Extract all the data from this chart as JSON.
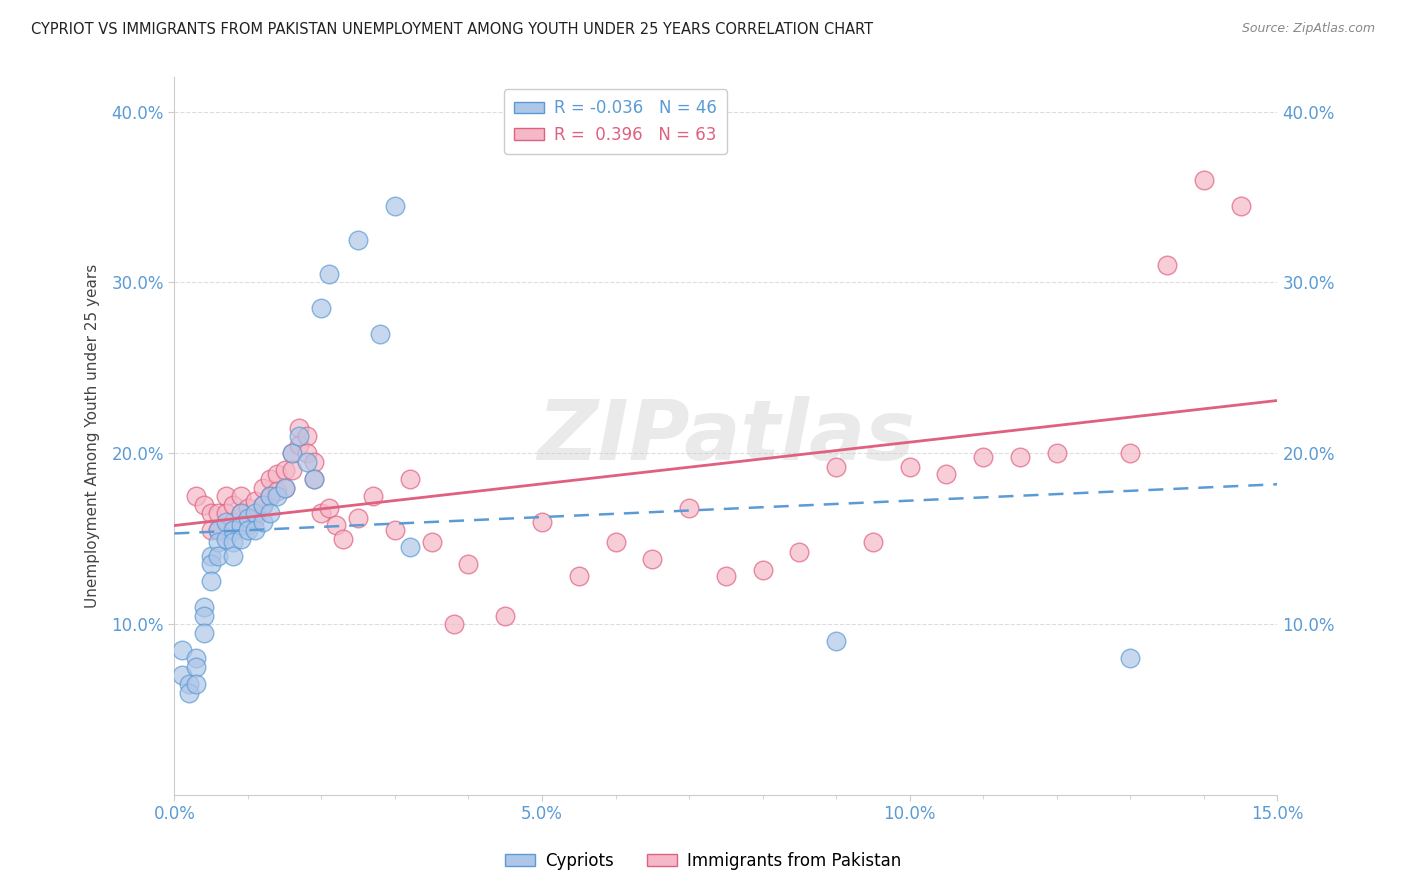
{
  "title": "CYPRIOT VS IMMIGRANTS FROM PAKISTAN UNEMPLOYMENT AMONG YOUTH UNDER 25 YEARS CORRELATION CHART",
  "source": "Source: ZipAtlas.com",
  "ylabel": "Unemployment Among Youth under 25 years",
  "xlim": [
    0.0,
    0.15
  ],
  "ylim": [
    0.0,
    0.42
  ],
  "xtick_labels": [
    "0.0%",
    "",
    "",
    "",
    "",
    "5.0%",
    "",
    "",
    "",
    "",
    "10.0%",
    "",
    "",
    "",
    "",
    "15.0%"
  ],
  "xtick_vals": [
    0.0,
    0.01,
    0.02,
    0.03,
    0.04,
    0.05,
    0.06,
    0.07,
    0.08,
    0.09,
    0.1,
    0.11,
    0.12,
    0.13,
    0.14,
    0.15
  ],
  "ytick_vals": [
    0.1,
    0.2,
    0.3,
    0.4
  ],
  "ytick_labels": [
    "10.0%",
    "20.0%",
    "30.0%",
    "40.0%"
  ],
  "cypriot_color": "#aec6e8",
  "cypriot_edge_color": "#5b9bd5",
  "pakistan_color": "#f4b8c8",
  "pakistan_edge_color": "#e06080",
  "cypriot_line_color": "#5b9bd5",
  "pakistan_line_color": "#e06080",
  "legend_label_cypriot": "R = -0.036   N = 46",
  "legend_label_pakistan": "R =  0.396   N = 63",
  "watermark": "ZIPatlas",
  "grid_color": "#dddddd",
  "tick_color": "#5b9bd5",
  "cypriot_x": [
    0.001,
    0.001,
    0.002,
    0.002,
    0.003,
    0.003,
    0.003,
    0.004,
    0.004,
    0.004,
    0.005,
    0.005,
    0.005,
    0.006,
    0.006,
    0.006,
    0.007,
    0.007,
    0.008,
    0.008,
    0.008,
    0.009,
    0.009,
    0.009,
    0.01,
    0.01,
    0.011,
    0.011,
    0.012,
    0.012,
    0.013,
    0.013,
    0.014,
    0.015,
    0.016,
    0.017,
    0.018,
    0.019,
    0.02,
    0.021,
    0.025,
    0.028,
    0.03,
    0.032,
    0.09,
    0.13
  ],
  "cypriot_y": [
    0.085,
    0.07,
    0.065,
    0.06,
    0.08,
    0.075,
    0.065,
    0.11,
    0.105,
    0.095,
    0.14,
    0.135,
    0.125,
    0.155,
    0.148,
    0.14,
    0.16,
    0.15,
    0.155,
    0.148,
    0.14,
    0.165,
    0.158,
    0.15,
    0.162,
    0.155,
    0.165,
    0.155,
    0.17,
    0.16,
    0.175,
    0.165,
    0.175,
    0.18,
    0.2,
    0.21,
    0.195,
    0.185,
    0.285,
    0.305,
    0.325,
    0.27,
    0.345,
    0.145,
    0.09,
    0.08
  ],
  "pakistan_x": [
    0.003,
    0.004,
    0.005,
    0.005,
    0.006,
    0.006,
    0.007,
    0.007,
    0.008,
    0.008,
    0.009,
    0.009,
    0.01,
    0.01,
    0.011,
    0.011,
    0.012,
    0.012,
    0.013,
    0.013,
    0.014,
    0.014,
    0.015,
    0.015,
    0.016,
    0.016,
    0.017,
    0.017,
    0.018,
    0.018,
    0.019,
    0.019,
    0.02,
    0.021,
    0.022,
    0.023,
    0.025,
    0.027,
    0.03,
    0.032,
    0.035,
    0.038,
    0.04,
    0.045,
    0.05,
    0.055,
    0.06,
    0.065,
    0.07,
    0.075,
    0.08,
    0.085,
    0.09,
    0.095,
    0.1,
    0.105,
    0.11,
    0.115,
    0.12,
    0.13,
    0.135,
    0.14,
    0.145
  ],
  "pakistan_y": [
    0.175,
    0.17,
    0.165,
    0.155,
    0.165,
    0.155,
    0.175,
    0.165,
    0.17,
    0.16,
    0.175,
    0.165,
    0.168,
    0.158,
    0.172,
    0.162,
    0.18,
    0.17,
    0.185,
    0.175,
    0.188,
    0.178,
    0.19,
    0.18,
    0.2,
    0.19,
    0.215,
    0.205,
    0.21,
    0.2,
    0.195,
    0.185,
    0.165,
    0.168,
    0.158,
    0.15,
    0.162,
    0.175,
    0.155,
    0.185,
    0.148,
    0.1,
    0.135,
    0.105,
    0.16,
    0.128,
    0.148,
    0.138,
    0.168,
    0.128,
    0.132,
    0.142,
    0.192,
    0.148,
    0.192,
    0.188,
    0.198,
    0.198,
    0.2,
    0.2,
    0.31,
    0.36,
    0.345
  ]
}
